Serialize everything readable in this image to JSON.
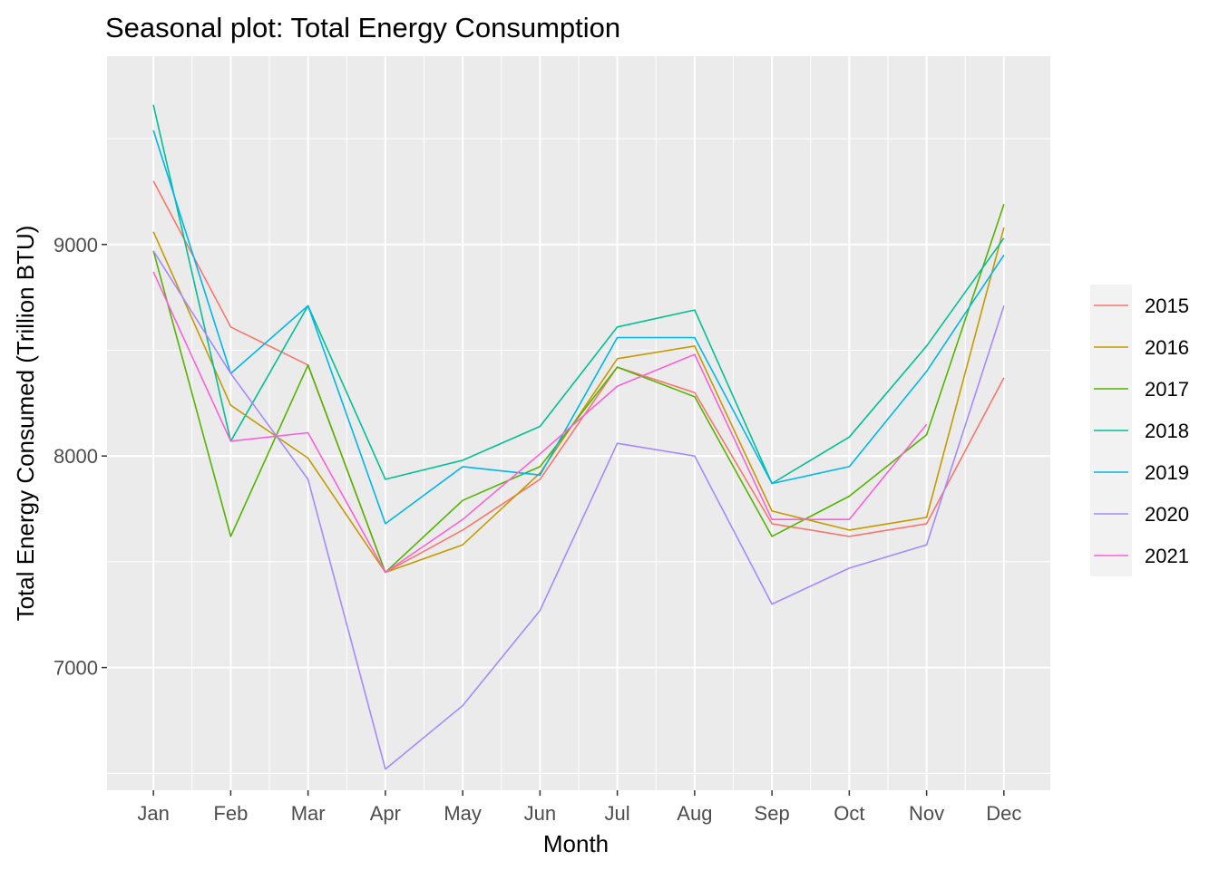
{
  "chart_data": {
    "type": "line",
    "title": "Seasonal plot: Total Energy Consumption",
    "xlabel": "Month",
    "ylabel": "Total Energy Consumed (Trillion BTU)",
    "categories": [
      "Jan",
      "Feb",
      "Mar",
      "Apr",
      "May",
      "Jun",
      "Jul",
      "Aug",
      "Sep",
      "Oct",
      "Nov",
      "Dec"
    ],
    "yticks": [
      7000,
      8000,
      9000
    ],
    "ylim": [
      6420,
      9890
    ],
    "grid": true,
    "legend": "right",
    "series": [
      {
        "name": "2015",
        "color": "#F8766D",
        "values": [
          9300,
          8610,
          8430,
          7450,
          7650,
          7890,
          8420,
          8300,
          7680,
          7620,
          7680,
          8370
        ]
      },
      {
        "name": "2016",
        "color": "#C49A00",
        "values": [
          9060,
          8240,
          7990,
          7450,
          7580,
          7920,
          8460,
          8520,
          7740,
          7650,
          7710,
          9080
        ]
      },
      {
        "name": "2017",
        "color": "#53B400",
        "values": [
          8970,
          7620,
          8430,
          7450,
          7790,
          7950,
          8420,
          8280,
          7620,
          7810,
          8100,
          9190
        ]
      },
      {
        "name": "2018",
        "color": "#00C094",
        "values": [
          9660,
          8070,
          8710,
          7890,
          7980,
          8140,
          8610,
          8690,
          7870,
          8090,
          8520,
          9030
        ]
      },
      {
        "name": "2019",
        "color": "#00B6EB",
        "values": [
          9540,
          8390,
          8710,
          7680,
          7950,
          7910,
          8560,
          8560,
          7870,
          7950,
          8400,
          8950
        ]
      },
      {
        "name": "2020",
        "color": "#A58AFF",
        "values": [
          8970,
          8390,
          7890,
          6520,
          6820,
          7270,
          8060,
          8000,
          7300,
          7470,
          7580,
          8710
        ]
      },
      {
        "name": "2021",
        "color": "#FB61D7",
        "values": [
          8870,
          8070,
          8110,
          7450,
          7700,
          8010,
          8330,
          8480,
          7700,
          7700,
          8150,
          null
        ]
      }
    ]
  }
}
